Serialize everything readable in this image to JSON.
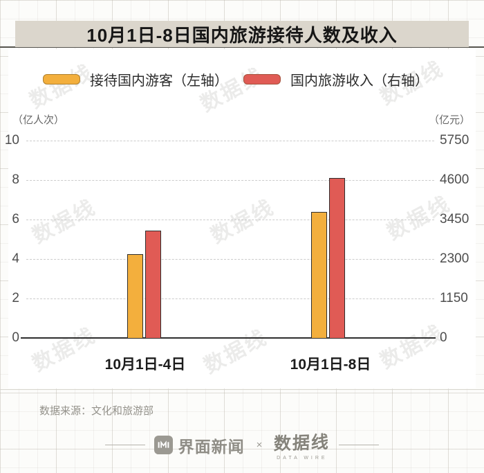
{
  "title": "10月1日-8日国内旅游接待人数及收入",
  "legend": [
    {
      "label": "接待国内游客（左轴）",
      "color": "#F3AF3D"
    },
    {
      "label": "国内旅游收入（右轴）",
      "color": "#E05B55"
    }
  ],
  "chart_data": {
    "type": "bar",
    "title": "10月1日-8日国内旅游接待人数及收入",
    "categories": [
      "10月1日-4日",
      "10月1日-8日"
    ],
    "series": [
      {
        "name": "接待国内游客（左轴）",
        "axis": "left",
        "values": [
          4.25,
          6.37
        ],
        "color": "#F3AF3D"
      },
      {
        "name": "国内旅游收入（右轴）",
        "axis": "right",
        "values": [
          3120,
          4666
        ],
        "color": "#E05B55"
      }
    ],
    "left_axis": {
      "unit": "（亿人次）",
      "ticks": [
        0,
        2,
        4,
        6,
        8,
        10
      ],
      "max": 10
    },
    "right_axis": {
      "unit": "（亿元）",
      "ticks": [
        0,
        1150,
        2300,
        3450,
        4600,
        5750
      ],
      "max": 5750
    },
    "grid": "horizontal dashed",
    "legend_position": "top"
  },
  "source": "数据来源：文化和旅游部",
  "footer": {
    "brand1": "界面新闻",
    "separator": "×",
    "brand2": "数据线",
    "brand2_sub": "DATA WIRE"
  },
  "watermark": {
    "text": "数据线"
  }
}
